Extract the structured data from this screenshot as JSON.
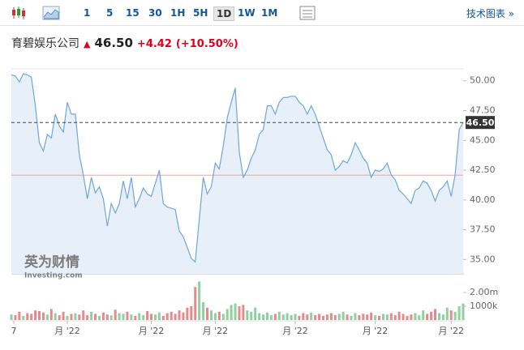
{
  "toolbar": {
    "intervals": [
      "1",
      "5",
      "15",
      "30",
      "1H",
      "5H",
      "1D",
      "1W",
      "1M"
    ],
    "selected_interval": 6,
    "link": "技术图表 »"
  },
  "header": {
    "name": "育碧娱乐公司",
    "price": "46.50",
    "change": "+4.42",
    "change_pct": "(+10.50%)"
  },
  "watermark": {
    "brand": "英为财情",
    "site": "Investing.com"
  },
  "chart_data": {
    "type": "line",
    "color": "#6fa6d6",
    "fill": "#e7eff8",
    "values": [
      50.5,
      50.4,
      49.9,
      50.6,
      50.5,
      50.3,
      47.9,
      44.8,
      44.1,
      45.5,
      45.2,
      47.2,
      46.2,
      45.7,
      48.2,
      47.2,
      47.2,
      43.8,
      42.1,
      40.1,
      41.9,
      40.6,
      41.1,
      40.1,
      37.8,
      39.7,
      38.9,
      39.7,
      41.6,
      40.1,
      41.9,
      39.4,
      40.1,
      41.0,
      40.5,
      40.3,
      41.4,
      42.5,
      39.7,
      39.4,
      39.3,
      39.2,
      37.4,
      36.9,
      36.0,
      35.1,
      34.8,
      38.4,
      41.9,
      40.5,
      41.1,
      43.1,
      42.6,
      44.5,
      46.9,
      48.2,
      49.4,
      44.0,
      41.9,
      42.5,
      43.5,
      44.2,
      45.5,
      45.9,
      47.9,
      47.9,
      47.2,
      48.2,
      48.6,
      48.6,
      48.7,
      48.7,
      48.2,
      47.9,
      47.2,
      47.9,
      47.2,
      46.2,
      45.2,
      44.2,
      43.8,
      42.5,
      42.8,
      43.3,
      43.1,
      43.8,
      44.8,
      44.2,
      43.5,
      43.1,
      41.9,
      42.5,
      42.4,
      42.6,
      43.1,
      42.1,
      41.7,
      40.8,
      40.5,
      40.1,
      39.7,
      40.8,
      41.0,
      41.6,
      41.4,
      40.8,
      39.9,
      40.8,
      41.1,
      41.6,
      40.3,
      42.1,
      45.9,
      46.5
    ],
    "volumes": [
      400000,
      350000,
      600000,
      300000,
      500000,
      450000,
      700000,
      650000,
      550000,
      400000,
      800000,
      500000,
      350000,
      600000,
      300000,
      450000,
      500000,
      400000,
      700000,
      350000,
      600000,
      450000,
      300000,
      550000,
      400000,
      350000,
      750000,
      500000,
      450000,
      600000,
      400000,
      300000,
      500000,
      350000,
      650000,
      450000,
      400000,
      550000,
      300000,
      500000,
      600000,
      450000,
      700000,
      550000,
      900000,
      1000000,
      2400000,
      2800000,
      1300000,
      900000,
      700000,
      500000,
      600000,
      450000,
      800000,
      1100000,
      1200000,
      1000000,
      1100000,
      700000,
      600000,
      900000,
      500000,
      400000,
      550000,
      350000,
      450000,
      600000,
      400000,
      500000,
      350000,
      450000,
      300000,
      500000,
      400000,
      550000,
      350000,
      450000,
      300000,
      400000,
      500000,
      350000,
      450000,
      600000,
      400000,
      300000,
      500000,
      350000,
      450000,
      400000,
      550000,
      350000,
      300000,
      450000,
      400000,
      500000,
      350000,
      600000,
      450000,
      300000,
      400000,
      500000,
      350000,
      700000,
      450000,
      600000,
      800000,
      500000,
      400000,
      900000,
      700000,
      600000,
      1000000,
      1200000
    ],
    "up_color": "#8fd19e",
    "down_color": "#e58a8a",
    "xlim": [
      0,
      113
    ],
    "xticks": [
      {
        "value": 0,
        "label": "7"
      },
      {
        "value": 14,
        "label": "月 '22"
      },
      {
        "value": 35,
        "label": "月 '22"
      },
      {
        "value": 51,
        "label": "月 '22"
      },
      {
        "value": 71,
        "label": "月 '22"
      },
      {
        "value": 91,
        "label": "月 '22"
      },
      {
        "value": 110,
        "label": "月 '22"
      }
    ],
    "ylim": [
      33.8,
      51.0
    ],
    "yticks": [
      {
        "value": 35,
        "label": "35.00"
      },
      {
        "value": 37.5,
        "label": "37.50"
      },
      {
        "value": 40,
        "label": "40.00"
      },
      {
        "value": 42.5,
        "label": "42.50"
      },
      {
        "value": 45,
        "label": "45.00"
      },
      {
        "value": 47.5,
        "label": "47.50"
      },
      {
        "value": 50,
        "label": "50.00"
      }
    ],
    "y2lim": [
      0,
      3240000
    ],
    "y2ticks": [
      {
        "value": 2000000,
        "label": "2.00m"
      },
      {
        "value": 1000000,
        "label": "1000k"
      }
    ],
    "last_price": {
      "value": 46.5,
      "label": "46.50"
    },
    "prev_close": 42.08
  }
}
